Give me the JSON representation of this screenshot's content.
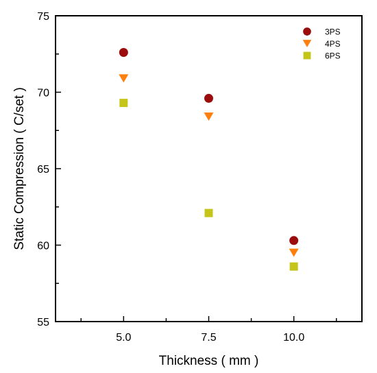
{
  "chart_data": {
    "type": "scatter",
    "xlabel": "Thickness ( mm )",
    "ylabel": "Static Compression ( C/set )",
    "xlim": [
      3.0,
      12.0
    ],
    "ylim": [
      55,
      75
    ],
    "x_ticks": [
      5.0,
      7.5,
      10.0
    ],
    "x_tick_labels": [
      "5.0",
      "7.5",
      "10.0"
    ],
    "y_ticks": [
      55,
      60,
      65,
      70,
      75
    ],
    "y_tick_labels": [
      "55",
      "60",
      "65",
      "70",
      "75"
    ],
    "grid": false,
    "legend_position": "top-right",
    "series": [
      {
        "name": "3PS",
        "marker": "circle",
        "color": "#9b0d0d",
        "x": [
          5.0,
          7.5,
          10.0
        ],
        "y": [
          72.6,
          69.6,
          60.3
        ]
      },
      {
        "name": "4PS",
        "marker": "triangle-down",
        "color": "#ff7f0e",
        "x": [
          5.0,
          7.5,
          10.0
        ],
        "y": [
          70.9,
          68.4,
          59.5
        ]
      },
      {
        "name": "6PS",
        "marker": "square",
        "color": "#c5c418",
        "x": [
          5.0,
          7.5,
          10.0
        ],
        "y": [
          69.3,
          62.1,
          58.6
        ]
      }
    ]
  }
}
